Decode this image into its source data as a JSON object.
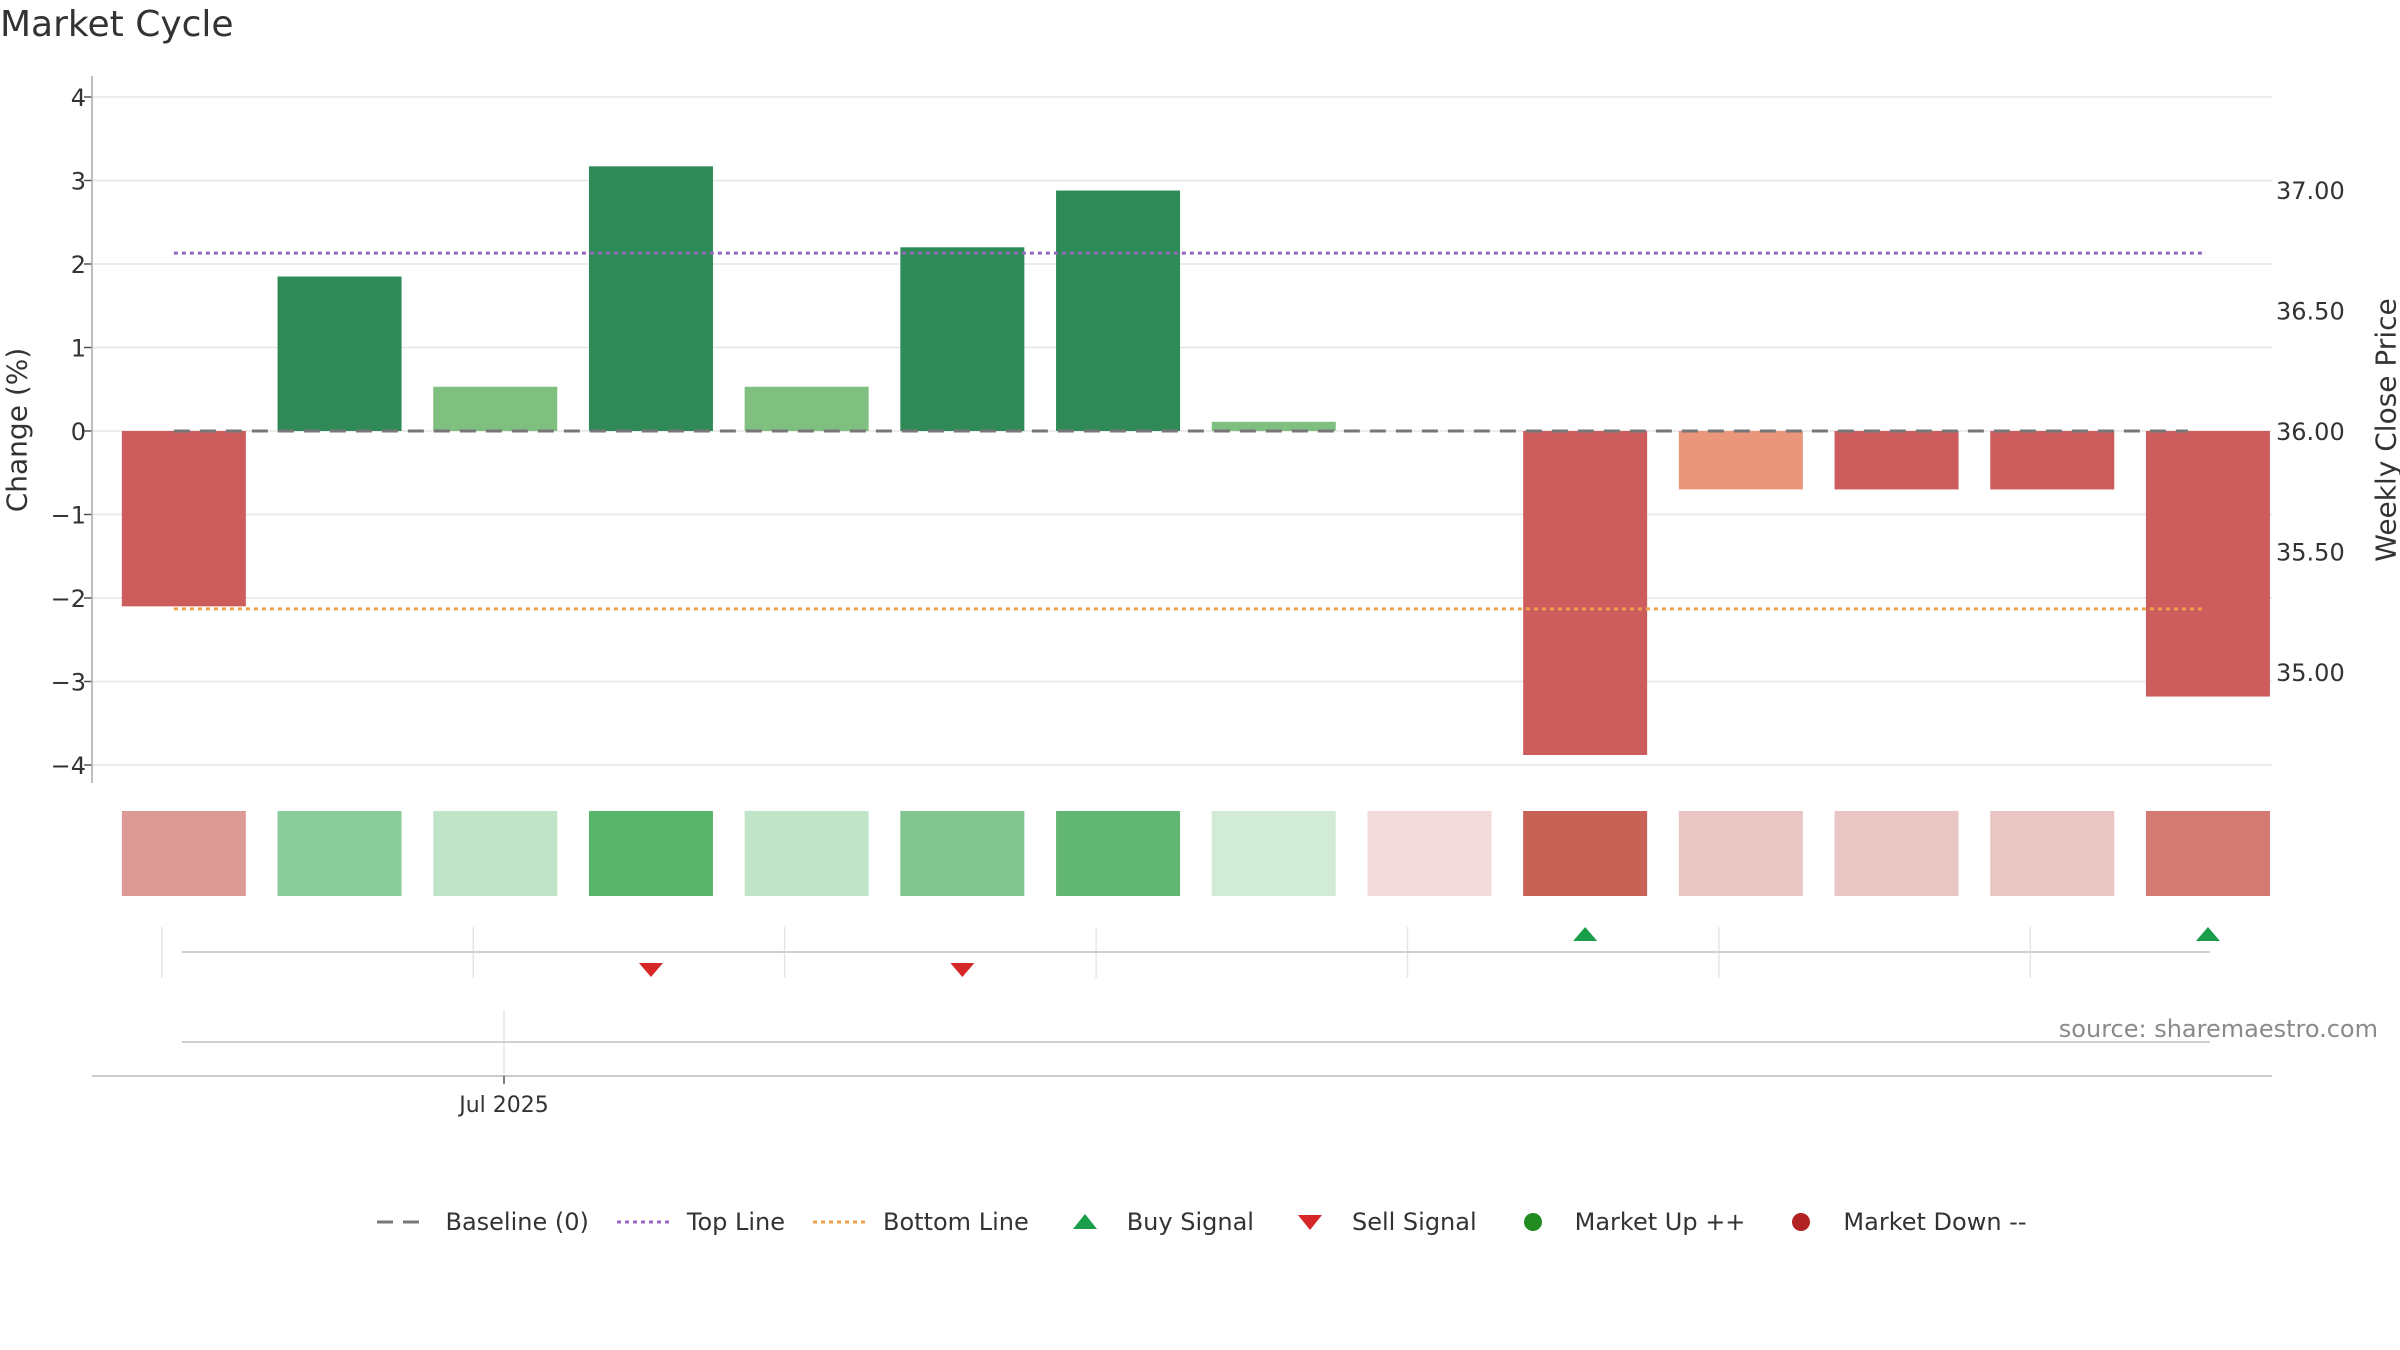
{
  "chart_data": {
    "type": "bar",
    "title": "Market Cycle",
    "ylabel": "Change (%)",
    "y2label": "Weekly Close Price",
    "ylim": [
      -4.3,
      4.3
    ],
    "y_ticks": [
      "4",
      "3",
      "2",
      "1",
      "0",
      "−1",
      "−2",
      "−3",
      "−4"
    ],
    "y_tick_values": [
      4,
      3,
      2,
      1,
      0,
      -1,
      -2,
      -3,
      -4
    ],
    "y2_ticks": [
      "37.00",
      "36.50",
      "36.00",
      "35.50",
      "35.00"
    ],
    "y2_tick_values": [
      37.0,
      36.5,
      36.0,
      35.5,
      35.0
    ],
    "y2lim": [
      34.68,
      37.3
    ],
    "values": [
      -2.1,
      1.85,
      0.53,
      3.17,
      0.53,
      2.2,
      2.88,
      0.11,
      0.0,
      -3.88,
      -0.7,
      -0.7,
      -0.7,
      -3.18
    ],
    "bar_colors": [
      "#cd5c5c",
      "#2e8b57",
      "#7fbf7f",
      "#2e8b57",
      "#7fbf7f",
      "#2e8b57",
      "#2e8b57",
      "#7fbf7f",
      "#cd5c5c",
      "#cd5c5c",
      "#e9967a",
      "#cd5c5c",
      "#cd5c5c",
      "#cd5c5c"
    ],
    "heatmap_colors": [
      "#dc9a95",
      "#8acc9a",
      "#c0e4c8",
      "#58b46a",
      "#c0e4c8",
      "#80c68e",
      "#62b674",
      "#d1ebd7",
      "#f2dadb",
      "#c96256",
      "#e9c5c4",
      "#e9c5c4",
      "#e9c5c4",
      "#d47a72"
    ],
    "baseline": 0,
    "top_line": 2.13,
    "bottom_line": -2.13,
    "buy_signals": [
      9,
      13
    ],
    "sell_signals": [
      3,
      5
    ],
    "x_tick_label": "Jul 2025",
    "grid": true,
    "legend_position": "bottom-center",
    "colors": {
      "baseline": "#777777",
      "top_line": "#9467bd",
      "bottom_line": "#f0a04b",
      "buy": "#1a9e4a",
      "sell": "#d62728",
      "market_up": "#228b22",
      "market_down": "#b22222"
    }
  },
  "legend": [
    {
      "label": "Baseline (0)",
      "icon": "dash-line"
    },
    {
      "label": "Top Line",
      "icon": "dotted-line"
    },
    {
      "label": "Bottom Line",
      "icon": "dotted-line"
    },
    {
      "label": "Buy Signal",
      "icon": "triangle-up"
    },
    {
      "label": "Sell Signal",
      "icon": "triangle-down"
    },
    {
      "label": "Market Up ++",
      "icon": "dot"
    },
    {
      "label": "Market Down --",
      "icon": "dot"
    }
  ],
  "source": "source: sharemaestro.com"
}
